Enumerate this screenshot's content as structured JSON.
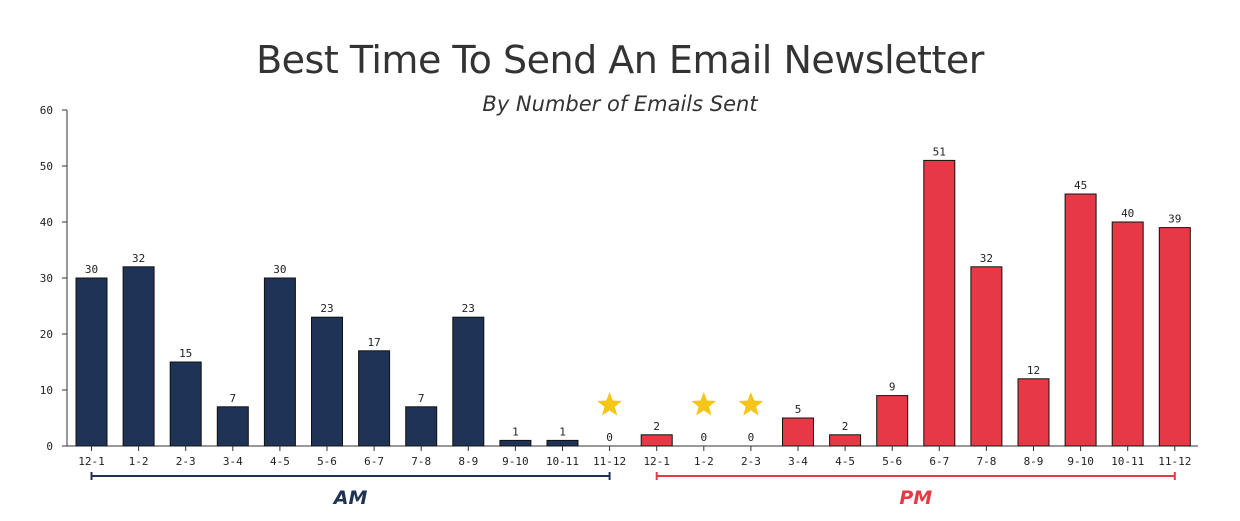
{
  "chart_data": {
    "type": "bar",
    "title": "Best Time To Send An Email Newsletter",
    "subtitle": "By Number of Emails Sent",
    "xlabel": "",
    "ylabel": "",
    "ylim": [
      0,
      60
    ],
    "yticks": [
      0,
      10,
      20,
      30,
      40,
      50,
      60
    ],
    "grid": false,
    "categories": [
      "12-1",
      "1-2",
      "2-3",
      "3-4",
      "4-5",
      "5-6",
      "6-7",
      "7-8",
      "8-9",
      "9-10",
      "10-11",
      "11-12",
      "12-1",
      "1-2",
      "2-3",
      "3-4",
      "4-5",
      "5-6",
      "6-7",
      "7-8",
      "8-9",
      "9-10",
      "10-11",
      "11-12"
    ],
    "values": [
      30,
      32,
      15,
      7,
      30,
      23,
      17,
      7,
      23,
      1,
      1,
      0,
      2,
      0,
      0,
      5,
      2,
      9,
      51,
      32,
      12,
      45,
      40,
      39
    ],
    "period": [
      "AM",
      "AM",
      "AM",
      "AM",
      "AM",
      "AM",
      "AM",
      "AM",
      "AM",
      "AM",
      "AM",
      "AM",
      "PM",
      "PM",
      "PM",
      "PM",
      "PM",
      "PM",
      "PM",
      "PM",
      "PM",
      "PM",
      "PM",
      "PM"
    ],
    "stars": [
      11,
      13,
      14
    ],
    "groups": [
      {
        "label": "AM",
        "color": "#1e3355"
      },
      {
        "label": "PM",
        "color": "#e63946"
      }
    ]
  }
}
